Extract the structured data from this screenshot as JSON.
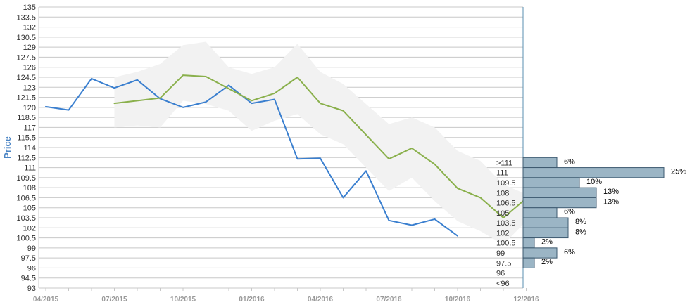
{
  "chart_data": {
    "type": "line",
    "ylabel": "Price",
    "ylim": [
      93,
      135
    ],
    "y_ticks": [
      "93",
      "94.5",
      "96",
      "97.5",
      "99",
      "100.5",
      "102",
      "103.5",
      "105",
      "106.5",
      "108",
      "109.5",
      "111",
      "112.5",
      "114",
      "115.5",
      "117",
      "118.5",
      "120",
      "121.5",
      "123",
      "124.5",
      "126",
      "127.5",
      "129",
      "130.5",
      "132",
      "133.5",
      "135"
    ],
    "x_ticks": [
      "04/2015",
      "07/2015",
      "10/2015",
      "01/2016",
      "04/2016",
      "07/2016",
      "10/2016",
      "12/2016"
    ],
    "x_tick_positions": [
      0,
      3,
      6,
      9,
      12,
      15,
      18,
      21
    ],
    "grid": true,
    "series": [
      {
        "color": "#3a7fcf",
        "points": [
          [
            0,
            120.1
          ],
          [
            1,
            119.6
          ],
          [
            2,
            124.3
          ],
          [
            3,
            122.9
          ],
          [
            4,
            124.1
          ],
          [
            5,
            121.3
          ],
          [
            6,
            120.0
          ],
          [
            7,
            120.8
          ],
          [
            8,
            123.3
          ],
          [
            9,
            120.6
          ],
          [
            10,
            121.2
          ],
          [
            11,
            112.3
          ],
          [
            12,
            112.4
          ],
          [
            13,
            106.5
          ],
          [
            14,
            110.5
          ],
          [
            15,
            103.1
          ],
          [
            16,
            102.4
          ],
          [
            17,
            103.3
          ],
          [
            18,
            100.8
          ]
        ]
      },
      {
        "color": "#8ab04c",
        "points": [
          [
            3,
            120.6
          ],
          [
            4,
            121.0
          ],
          [
            5,
            121.4
          ],
          [
            6,
            124.8
          ],
          [
            7,
            124.6
          ],
          [
            8,
            122.8
          ],
          [
            9,
            121.0
          ],
          [
            10,
            122.1
          ],
          [
            11,
            124.5
          ],
          [
            12,
            120.6
          ],
          [
            13,
            119.5
          ],
          [
            14,
            115.9
          ],
          [
            15,
            112.3
          ],
          [
            16,
            113.9
          ],
          [
            17,
            111.5
          ],
          [
            18,
            107.9
          ],
          [
            19,
            106.5
          ],
          [
            20,
            103.5
          ],
          [
            21,
            106.4
          ]
        ]
      }
    ],
    "band": {
      "color": "#f2f2f2",
      "upper": [
        [
          3,
          124.5
        ],
        [
          4,
          125.3
        ],
        [
          5,
          126.5
        ],
        [
          6,
          129.3
        ],
        [
          7,
          129.8
        ],
        [
          8,
          126.0
        ],
        [
          9,
          125.0
        ],
        [
          10,
          126.0
        ],
        [
          11,
          129.5
        ],
        [
          12,
          125.3
        ],
        [
          13,
          123.5
        ],
        [
          14,
          120.5
        ],
        [
          15,
          117.5
        ],
        [
          16,
          118.5
        ],
        [
          17,
          117.0
        ],
        [
          18,
          113.5
        ],
        [
          19,
          112.0
        ],
        [
          20,
          108.5
        ],
        [
          21,
          107.0
        ]
      ],
      "lower": [
        [
          3,
          117.0
        ],
        [
          4,
          117.3
        ],
        [
          5,
          117.0
        ],
        [
          6,
          121.0
        ],
        [
          7,
          120.5
        ],
        [
          8,
          119.5
        ],
        [
          9,
          116.5
        ],
        [
          10,
          118.0
        ],
        [
          11,
          119.0
        ],
        [
          12,
          116.0
        ],
        [
          13,
          114.5
        ],
        [
          14,
          111.0
        ],
        [
          15,
          107.5
        ],
        [
          16,
          109.5
        ],
        [
          17,
          106.0
        ],
        [
          18,
          103.0
        ],
        [
          19,
          101.5
        ],
        [
          20,
          99.5
        ],
        [
          21,
          103.0
        ]
      ]
    },
    "distribution": {
      "bar_color": "#9bb5c5",
      "bins": [
        {
          "label": ">111",
          "percent": 6,
          "percent_label": "6%"
        },
        {
          "label": "111",
          "percent": 25,
          "percent_label": "25%"
        },
        {
          "label": "109.5",
          "percent": 10,
          "percent_label": "10%"
        },
        {
          "label": "108",
          "percent": 13,
          "percent_label": "13%"
        },
        {
          "label": "106.5",
          "percent": 13,
          "percent_label": "13%"
        },
        {
          "label": "105",
          "percent": 6,
          "percent_label": "6%"
        },
        {
          "label": "103.5",
          "percent": 8,
          "percent_label": "8%"
        },
        {
          "label": "102",
          "percent": 8,
          "percent_label": "8%"
        },
        {
          "label": "100.5",
          "percent": 2,
          "percent_label": "2%"
        },
        {
          "label": "99",
          "percent": 6,
          "percent_label": "6%"
        },
        {
          "label": "97.5",
          "percent": 2,
          "percent_label": "2%"
        },
        {
          "label": "96",
          "percent": 0,
          "percent_label": ""
        },
        {
          "label": "<96",
          "percent": 0,
          "percent_label": ""
        }
      ]
    }
  }
}
